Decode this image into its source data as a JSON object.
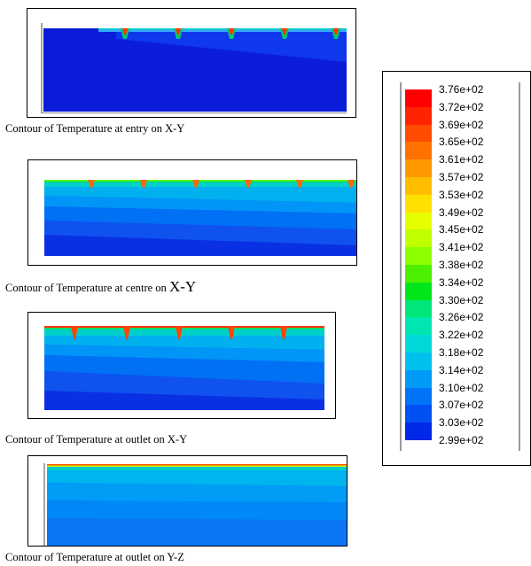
{
  "captions": [
    {
      "text": "Contour of Temperature at entry on X-Y",
      "suffix": ""
    },
    {
      "text": "Contour of Temperature at centre on ",
      "suffix": "X-Y"
    },
    {
      "text": "Contour of Temperature at outlet on X-Y",
      "suffix": ""
    },
    {
      "text": "Contour of Temperature at outlet on Y-Z",
      "suffix": ""
    }
  ],
  "legend": {
    "labels": [
      "3.76e+02",
      "3.72e+02",
      "3.69e+02",
      "3.65e+02",
      "3.61e+02",
      "3.57e+02",
      "3.53e+02",
      "3.49e+02",
      "3.45e+02",
      "3.41e+02",
      "3.38e+02",
      "3.34e+02",
      "3.30e+02",
      "3.26e+02",
      "3.22e+02",
      "3.18e+02",
      "3.14e+02",
      "3.10e+02",
      "3.07e+02",
      "3.03e+02",
      "2.99e+02"
    ],
    "colors": [
      "#ff0000",
      "#ff2400",
      "#ff4c00",
      "#ff7200",
      "#ff9900",
      "#ffbf00",
      "#ffe000",
      "#e6ff00",
      "#bfff00",
      "#8cff00",
      "#4cf000",
      "#00e61a",
      "#00e67a",
      "#00e6b0",
      "#00d9d9",
      "#00c0ee",
      "#009af7",
      "#0073f7",
      "#0050f2",
      "#0028e8",
      "#0000e0"
    ]
  }
}
